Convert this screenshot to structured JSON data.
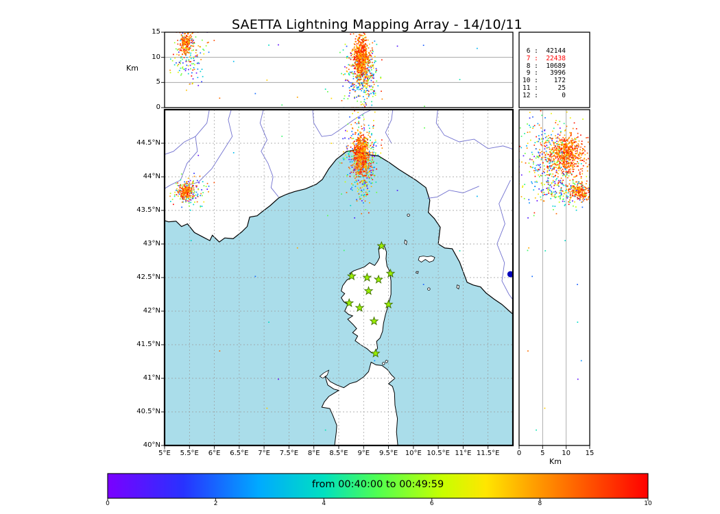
{
  "title": "SAETTA Lightning Mapping Array - 14/10/11",
  "labels": {
    "km": "Km"
  },
  "colorbar": {
    "label": "from 00:40:00 to 00:49:59",
    "tick_values": [
      0,
      2,
      4,
      6,
      8,
      10
    ],
    "tick_labels": [
      "0",
      "2",
      "4",
      "6",
      "8",
      "10"
    ],
    "range": [
      0,
      10
    ],
    "stops": [
      [
        0,
        "#7a00ff"
      ],
      [
        0.14,
        "#2832ff"
      ],
      [
        0.28,
        "#00aaff"
      ],
      [
        0.4,
        "#00e0c0"
      ],
      [
        0.5,
        "#50ff50"
      ],
      [
        0.62,
        "#c8ff00"
      ],
      [
        0.7,
        "#ffe600"
      ],
      [
        0.8,
        "#ff9600"
      ],
      [
        0.9,
        "#ff4b00"
      ],
      [
        1,
        "#ff0000"
      ]
    ]
  },
  "stats": {
    "highlight_level": "7",
    "highlight_color": "#ff0000",
    "text_color": "#000000"
  },
  "axes": {
    "lon": {
      "values": [
        5,
        5.5,
        6,
        6.5,
        7,
        7.5,
        8,
        8.5,
        9,
        9.5,
        10,
        10.5,
        11,
        11.5
      ],
      "labels": [
        "5°E",
        "5.5°E",
        "6°E",
        "6.5°E",
        "7°E",
        "7.5°E",
        "8°E",
        "8.5°E",
        "9°E",
        "9.5°E",
        "10°E",
        "10.5°E",
        "11°E",
        "11.5°E"
      ]
    },
    "lat": {
      "values": [
        40,
        40.5,
        41,
        41.5,
        42,
        42.5,
        43,
        43.5,
        44,
        44.5
      ],
      "labels": [
        "40°N",
        "40.5°N",
        "41°N",
        "41.5°N",
        "42°N",
        "42.5°N",
        "43°N",
        "43.5°N",
        "44°N",
        "44.5°N"
      ]
    },
    "alt": {
      "values": [
        0,
        5,
        10,
        15
      ],
      "labels": [
        "0",
        "5",
        "10",
        "15"
      ]
    }
  },
  "colors": {
    "sea": "#aaddea",
    "land": "#ffffff",
    "coast": "#000000",
    "river": "#7070cf",
    "grid": "#999999",
    "ref_line": "#9a9a9a",
    "station_fill": "#9bef00",
    "station_edge": "#3f7000",
    "marker": "#0000bb",
    "frame": "#000000"
  },
  "chart_data": {
    "type": "scatter",
    "title": "SAETTA Lightning Mapping Array - 14/10/11",
    "time_window": "from 00:40:00 to 00:49:59",
    "color_scale": "time within window, 0 to 10",
    "panels": {
      "top": {
        "name": "altitude-vs-longitude",
        "x": "longitude_deg_E",
        "y": "altitude_km",
        "xlim": [
          5,
          12
        ],
        "ylim": [
          0,
          15
        ],
        "ref_lines_km": [
          5,
          10
        ],
        "ylabel": "Km"
      },
      "main": {
        "name": "map",
        "x": "longitude_deg_E",
        "y": "latitude_deg_N",
        "xlim": [
          5,
          12
        ],
        "ylim": [
          40,
          45
        ]
      },
      "right": {
        "name": "altitude-vs-latitude",
        "x": "altitude_km",
        "y": "latitude_deg_N",
        "xlim": [
          0,
          15
        ],
        "ylim": [
          40,
          45
        ],
        "ref_lines_km": [
          5,
          10
        ],
        "xlabel": "Km"
      }
    },
    "counts_by_level": [
      [
        "6",
        42144
      ],
      [
        "7",
        22438
      ],
      [
        "8",
        10689
      ],
      [
        "9",
        3996
      ],
      [
        "10",
        172
      ],
      [
        "11",
        25
      ],
      [
        "12",
        0
      ]
    ],
    "stations_lon_lat": [
      [
        9.36,
        42.97
      ],
      [
        8.76,
        42.52
      ],
      [
        9.07,
        42.5
      ],
      [
        9.3,
        42.47
      ],
      [
        9.54,
        42.56
      ],
      [
        9.1,
        42.3
      ],
      [
        8.71,
        42.12
      ],
      [
        8.92,
        42.05
      ],
      [
        9.5,
        42.1
      ],
      [
        9.21,
        41.85
      ],
      [
        9.24,
        41.37
      ]
    ],
    "marker_lon_lat": [
      11.95,
      42.55
    ],
    "clusters": [
      {
        "name": "liguria-storm",
        "parts": [
          {
            "n": 330,
            "lon": [
              8.97,
              0.17
            ],
            "lat": [
              44.3,
              0.3
            ],
            "alt": [
              6.5,
              3.2
            ],
            "t": [
              0,
              10
            ]
          },
          {
            "n": 50,
            "lon": [
              9.02,
              0.06
            ],
            "lat": [
              43.85,
              0.2
            ],
            "alt": [
              6.0,
              3.0
            ],
            "t": [
              0,
              10
            ]
          },
          {
            "n": 620,
            "lon": [
              8.95,
              0.08
            ],
            "lat": [
              44.33,
              0.14
            ],
            "alt": [
              10.0,
              1.9
            ],
            "t": [
              7.2,
              10
            ]
          }
        ]
      },
      {
        "name": "provence-storm",
        "parts": [
          {
            "n": 150,
            "lon": [
              5.5,
              0.17
            ],
            "lat": [
              43.77,
              0.1
            ],
            "alt": [
              10.5,
              2.8
            ],
            "t": [
              0,
              10
            ]
          },
          {
            "n": 170,
            "lon": [
              5.42,
              0.07
            ],
            "lat": [
              43.78,
              0.06
            ],
            "alt": [
              12.7,
              1.1
            ],
            "t": [
              7.2,
              10
            ]
          }
        ]
      },
      {
        "name": "background-noise",
        "parts": [
          {
            "n": 22,
            "lon": [
              5.1,
              11.9,
              "u"
            ],
            "lat": [
              40.1,
              44.9,
              "u"
            ],
            "alt": [
              0,
              14,
              "u"
            ],
            "t": [
              0,
              10
            ]
          }
        ]
      }
    ]
  }
}
